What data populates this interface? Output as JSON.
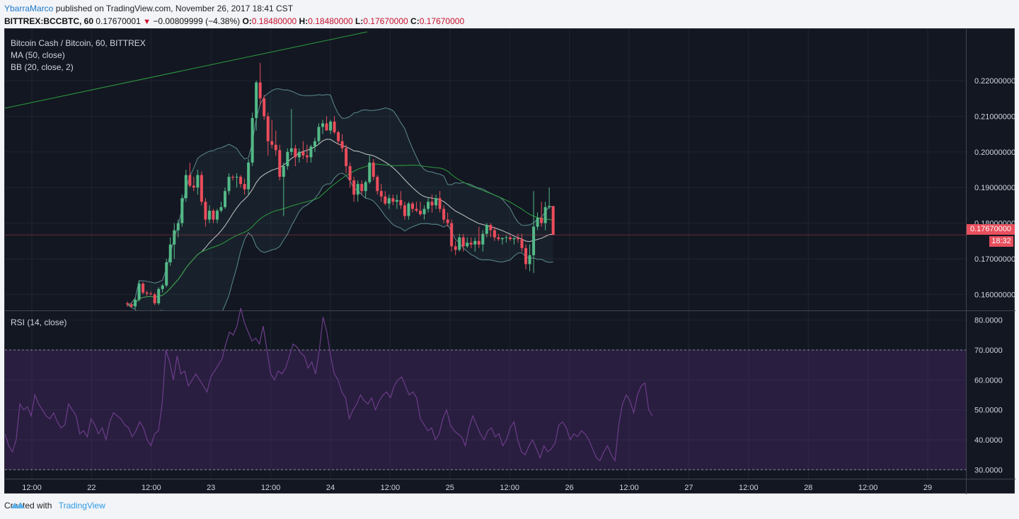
{
  "header": {
    "author": "YbarraMarco",
    "published": "published on TradingView.com, November 26, 2017 18:41 CST",
    "symbol": "BITTREX:BCCBTC, 60",
    "last": "0.17670001",
    "change": "−0.00809999 (−4.38%)",
    "o_label": "O:",
    "o_val": "0.18480000",
    "h_label": "H:",
    "h_val": "0.18480000",
    "l_label": "L:",
    "l_val": "0.17670000",
    "c_label": "C:",
    "c_val": "0.17670000"
  },
  "legend": {
    "pair": "Bitcoin Cash / Bitcoin, 60, BITTREX",
    "ma": "MA (50, close)",
    "bb": "BB (20, close, 2)",
    "rsi": "RSI (14, close)"
  },
  "price_tag": "0.17670000",
  "time_tag": "18:32",
  "footer": {
    "created": "Created with",
    "brand": "TradingView"
  },
  "colors": {
    "up": "#53b987",
    "down": "#eb4d5c",
    "bg": "#131722",
    "ma": "#2e9e3e",
    "bb": "#5c8a8f",
    "rsi": "#6c3d8a"
  },
  "chart_data": [
    {
      "type": "candlestick",
      "title": "Bitcoin Cash / Bitcoin, 60, BITTREX",
      "y_ticks": [
        "0.16000000",
        "0.17000000",
        "0.18000000",
        "0.19000000",
        "0.20000000",
        "0.21000000",
        "0.22000000"
      ],
      "ylim": [
        0.1555,
        0.2345
      ],
      "x_ticks": [
        "12:00",
        "22",
        "12:00",
        "23",
        "12:00",
        "24",
        "12:00",
        "25",
        "12:00",
        "26",
        "12:00",
        "27",
        "12:00",
        "28",
        "12:00",
        "29"
      ],
      "last_price": 0.1767,
      "candles": [
        [
          0.1575,
          0.158,
          0.1565,
          0.1572
        ],
        [
          0.1572,
          0.1578,
          0.1562,
          0.1566
        ],
        [
          0.1566,
          0.159,
          0.156,
          0.1585
        ],
        [
          0.1585,
          0.164,
          0.158,
          0.163
        ],
        [
          0.163,
          0.1635,
          0.16,
          0.1605
        ],
        [
          0.1605,
          0.161,
          0.1595,
          0.1602
        ],
        [
          0.1602,
          0.1608,
          0.1598,
          0.16
        ],
        [
          0.16,
          0.1605,
          0.157,
          0.1575
        ],
        [
          0.1575,
          0.162,
          0.157,
          0.1615
        ],
        [
          0.1615,
          0.163,
          0.1605,
          0.1625
        ],
        [
          0.1625,
          0.17,
          0.162,
          0.169
        ],
        [
          0.169,
          0.176,
          0.168,
          0.174
        ],
        [
          0.174,
          0.18,
          0.17,
          0.178
        ],
        [
          0.178,
          0.181,
          0.176,
          0.18
        ],
        [
          0.18,
          0.188,
          0.179,
          0.187
        ],
        [
          0.187,
          0.195,
          0.186,
          0.1935
        ],
        [
          0.1935,
          0.197,
          0.19,
          0.1905
        ],
        [
          0.1905,
          0.193,
          0.189,
          0.19
        ],
        [
          0.19,
          0.195,
          0.188,
          0.1935
        ],
        [
          0.1935,
          0.1945,
          0.185,
          0.186
        ],
        [
          0.186,
          0.187,
          0.179,
          0.181
        ],
        [
          0.181,
          0.185,
          0.18,
          0.1835
        ],
        [
          0.1835,
          0.184,
          0.18,
          0.181
        ],
        [
          0.181,
          0.184,
          0.18,
          0.1835
        ],
        [
          0.1835,
          0.186,
          0.183,
          0.1845
        ],
        [
          0.1845,
          0.19,
          0.184,
          0.189
        ],
        [
          0.189,
          0.194,
          0.188,
          0.193
        ],
        [
          0.193,
          0.1935,
          0.192,
          0.1928
        ],
        [
          0.1928,
          0.194,
          0.19,
          0.193
        ],
        [
          0.193,
          0.1935,
          0.19,
          0.191
        ],
        [
          0.191,
          0.1925,
          0.188,
          0.1895
        ],
        [
          0.1895,
          0.198,
          0.188,
          0.197
        ],
        [
          0.197,
          0.211,
          0.196,
          0.2095
        ],
        [
          0.2095,
          0.22,
          0.206,
          0.2195
        ],
        [
          0.2195,
          0.225,
          0.213,
          0.215
        ],
        [
          0.215,
          0.216,
          0.209,
          0.21
        ],
        [
          0.21,
          0.211,
          0.199,
          0.203
        ],
        [
          0.203,
          0.209,
          0.201,
          0.202
        ],
        [
          0.202,
          0.206,
          0.199,
          0.2005
        ],
        [
          0.2005,
          0.202,
          0.192,
          0.193
        ],
        [
          0.193,
          0.197,
          0.182,
          0.196
        ],
        [
          0.196,
          0.201,
          0.195,
          0.2
        ],
        [
          0.2,
          0.212,
          0.199,
          0.201
        ],
        [
          0.201,
          0.202,
          0.196,
          0.1985
        ],
        [
          0.1985,
          0.201,
          0.197,
          0.2
        ],
        [
          0.2,
          0.203,
          0.198,
          0.199
        ],
        [
          0.199,
          0.202,
          0.197,
          0.1985
        ],
        [
          0.1985,
          0.202,
          0.197,
          0.2015
        ],
        [
          0.2015,
          0.204,
          0.2,
          0.203
        ],
        [
          0.203,
          0.208,
          0.202,
          0.207
        ],
        [
          0.207,
          0.209,
          0.205,
          0.208
        ],
        [
          0.208,
          0.21,
          0.206,
          0.206
        ],
        [
          0.206,
          0.209,
          0.205,
          0.2085
        ],
        [
          0.2085,
          0.21,
          0.205,
          0.2055
        ],
        [
          0.2055,
          0.206,
          0.202,
          0.203
        ],
        [
          0.203,
          0.205,
          0.2,
          0.201
        ],
        [
          0.201,
          0.202,
          0.194,
          0.196
        ],
        [
          0.196,
          0.197,
          0.19,
          0.192
        ],
        [
          0.192,
          0.193,
          0.186,
          0.188
        ],
        [
          0.188,
          0.192,
          0.186,
          0.191
        ],
        [
          0.191,
          0.192,
          0.188,
          0.189
        ],
        [
          0.189,
          0.192,
          0.187,
          0.1915
        ],
        [
          0.1915,
          0.199,
          0.191,
          0.197
        ],
        [
          0.197,
          0.198,
          0.192,
          0.193
        ],
        [
          0.193,
          0.1935,
          0.188,
          0.189
        ],
        [
          0.189,
          0.191,
          0.186,
          0.1875
        ],
        [
          0.1875,
          0.189,
          0.185,
          0.1855
        ],
        [
          0.1855,
          0.188,
          0.184,
          0.187
        ],
        [
          0.187,
          0.188,
          0.185,
          0.186
        ],
        [
          0.186,
          0.188,
          0.184,
          0.1865
        ],
        [
          0.1865,
          0.189,
          0.184,
          0.185
        ],
        [
          0.185,
          0.186,
          0.181,
          0.182
        ],
        [
          0.182,
          0.186,
          0.181,
          0.1855
        ],
        [
          0.1855,
          0.186,
          0.183,
          0.184
        ],
        [
          0.184,
          0.186,
          0.183,
          0.1835
        ],
        [
          0.1835,
          0.186,
          0.182,
          0.1825
        ],
        [
          0.1825,
          0.185,
          0.181,
          0.184
        ],
        [
          0.184,
          0.187,
          0.183,
          0.186
        ],
        [
          0.186,
          0.188,
          0.183,
          0.185
        ],
        [
          0.185,
          0.188,
          0.184,
          0.187
        ],
        [
          0.187,
          0.189,
          0.183,
          0.184
        ],
        [
          0.184,
          0.185,
          0.18,
          0.181
        ],
        [
          0.181,
          0.183,
          0.179,
          0.18
        ],
        [
          0.18,
          0.181,
          0.172,
          0.1735
        ],
        [
          0.1735,
          0.175,
          0.171,
          0.1725
        ],
        [
          0.1725,
          0.177,
          0.172,
          0.176
        ],
        [
          0.176,
          0.177,
          0.172,
          0.1735
        ],
        [
          0.1735,
          0.176,
          0.173,
          0.1745
        ],
        [
          0.1745,
          0.176,
          0.173,
          0.174
        ],
        [
          0.174,
          0.176,
          0.172,
          0.175
        ],
        [
          0.175,
          0.179,
          0.173,
          0.174
        ],
        [
          0.174,
          0.178,
          0.172,
          0.177
        ],
        [
          0.177,
          0.18,
          0.176,
          0.1795
        ],
        [
          0.1795,
          0.18,
          0.176,
          0.178
        ],
        [
          0.178,
          0.179,
          0.175,
          0.176
        ],
        [
          0.176,
          0.177,
          0.175,
          0.1755
        ],
        [
          0.1755,
          0.176,
          0.174,
          0.1758
        ],
        [
          0.1758,
          0.1765,
          0.1745,
          0.176
        ],
        [
          0.176,
          0.1765,
          0.175,
          0.1755
        ],
        [
          0.1755,
          0.176,
          0.174,
          0.1758
        ],
        [
          0.1758,
          0.177,
          0.1745,
          0.1755
        ],
        [
          0.1755,
          0.177,
          0.172,
          0.173
        ],
        [
          0.173,
          0.174,
          0.167,
          0.1685
        ],
        [
          0.1685,
          0.174,
          0.1665,
          0.171
        ],
        [
          0.171,
          0.189,
          0.166,
          0.179
        ],
        [
          0.179,
          0.183,
          0.178,
          0.1815
        ],
        [
          0.1815,
          0.186,
          0.179,
          0.18
        ],
        [
          0.18,
          0.186,
          0.178,
          0.1845
        ],
        [
          0.1845,
          0.19,
          0.184,
          0.1848
        ],
        [
          0.1848,
          0.1848,
          0.1767,
          0.1767
        ]
      ]
    },
    {
      "type": "line",
      "title": "RSI (14, close)",
      "y_ticks": [
        "30.0000",
        "40.0000",
        "50.0000",
        "60.0000",
        "70.0000",
        "80.0000"
      ],
      "ylim": [
        27,
        83
      ],
      "bands": [
        30,
        70
      ],
      "values": [
        42,
        38,
        36,
        40,
        52,
        50,
        51,
        48,
        55,
        52,
        50,
        48,
        47,
        49,
        46,
        44,
        45,
        52,
        50,
        48,
        42,
        43,
        41,
        47,
        45,
        42,
        44,
        40,
        46,
        49,
        48,
        47,
        45,
        44,
        41,
        43,
        46,
        44,
        40,
        38,
        42,
        43,
        52,
        70,
        66,
        60,
        68,
        62,
        63,
        58,
        60,
        62,
        60,
        58,
        56,
        61,
        63,
        65,
        67,
        72,
        76,
        75,
        78,
        84,
        79,
        76,
        73,
        74,
        72,
        78,
        70,
        62,
        60,
        63,
        62,
        64,
        68,
        72,
        71,
        69,
        68,
        64,
        66,
        62,
        70,
        81,
        76,
        68,
        62,
        60,
        56,
        54,
        47,
        50,
        52,
        55,
        53,
        52,
        54,
        50,
        53,
        55,
        56,
        54,
        58,
        60,
        61,
        58,
        55,
        56,
        54,
        47,
        45,
        43,
        44,
        40,
        42,
        47,
        50,
        45,
        43,
        42,
        41,
        38,
        44,
        48,
        45,
        42,
        40,
        43,
        44,
        41,
        42,
        38,
        40,
        44,
        46,
        40,
        36,
        35,
        38,
        40,
        37,
        34,
        38,
        36,
        37,
        39,
        45,
        46,
        44,
        40,
        42,
        41,
        43,
        42,
        40,
        37,
        34,
        33,
        36,
        38,
        35,
        33,
        45,
        52,
        55,
        53,
        49,
        55,
        58,
        59,
        50,
        48
      ]
    }
  ]
}
